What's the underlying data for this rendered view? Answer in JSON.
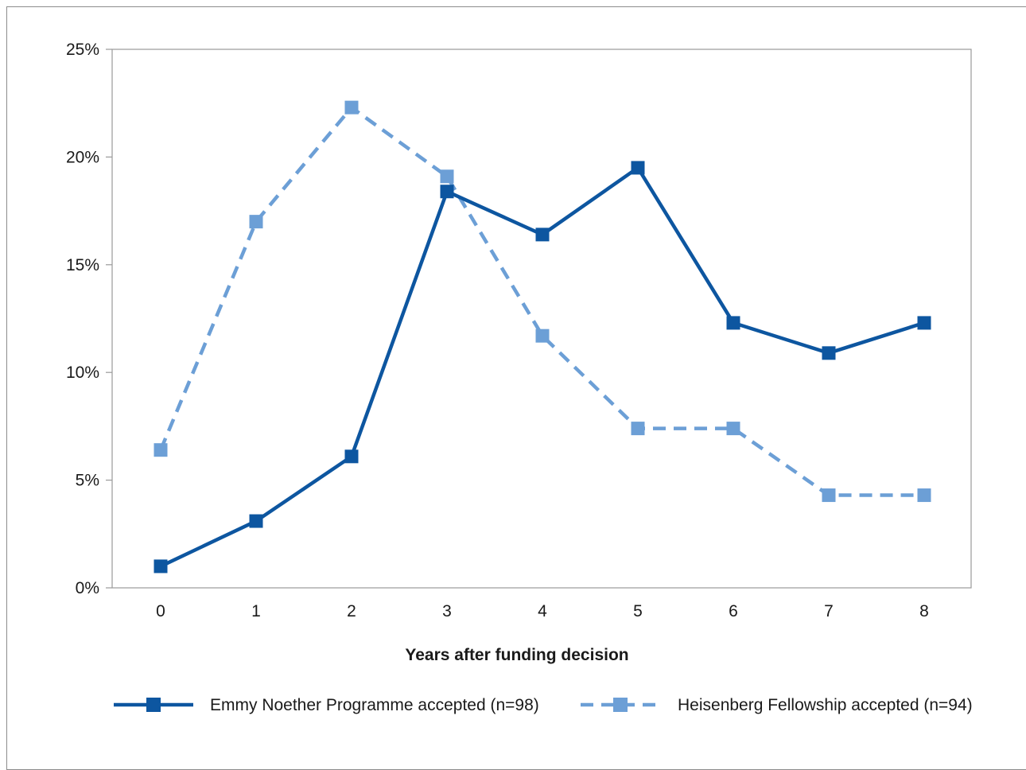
{
  "chart_data": {
    "type": "line",
    "title": "",
    "xlabel": "Years after funding decision",
    "ylabel": "",
    "categories": [
      "0",
      "1",
      "2",
      "3",
      "4",
      "5",
      "6",
      "7",
      "8"
    ],
    "x": [
      0,
      1,
      2,
      3,
      4,
      5,
      6,
      7,
      8
    ],
    "ylim": [
      0,
      25
    ],
    "yticks": [
      0,
      5,
      10,
      15,
      20,
      25
    ],
    "ytick_labels": [
      "0%",
      "5%",
      "10%",
      "15%",
      "20%",
      "25%"
    ],
    "grid": false,
    "legend_position": "bottom",
    "series": [
      {
        "name": "Emmy Noether Programme accepted (n=98)",
        "color": "#0d56a0",
        "line_style": "solid",
        "marker": "square",
        "values": [
          1.0,
          3.1,
          6.1,
          18.4,
          16.4,
          19.5,
          12.3,
          10.9,
          12.3
        ]
      },
      {
        "name": "Heisenberg Fellowship accepted (n=94)",
        "color": "#6c9fd6",
        "line_style": "dashed",
        "marker": "square",
        "values": [
          6.4,
          17.0,
          22.3,
          19.1,
          11.7,
          7.4,
          7.4,
          4.3,
          4.3
        ]
      }
    ]
  }
}
